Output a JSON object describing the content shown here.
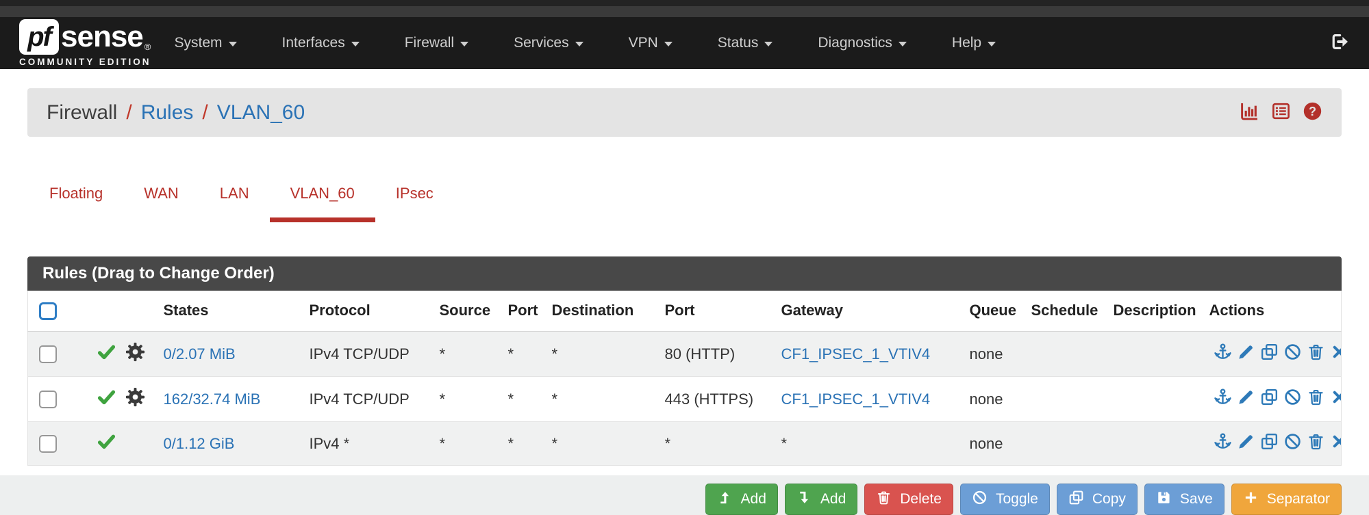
{
  "navbar": {
    "brand": {
      "pf": "pf",
      "sense": "sense",
      "reg": "®",
      "edition": "COMMUNITY EDITION"
    },
    "items": [
      "System",
      "Interfaces",
      "Firewall",
      "Services",
      "VPN",
      "Status",
      "Diagnostics",
      "Help"
    ],
    "logout_icon": "sign-out-icon"
  },
  "breadcrumb": {
    "separator": "/",
    "items": [
      {
        "label": "Firewall",
        "link": false
      },
      {
        "label": "Rules",
        "link": true
      },
      {
        "label": "VLAN_60",
        "link": true
      }
    ],
    "header_icons": [
      "chart-bar-icon",
      "log-list-icon",
      "help-icon"
    ]
  },
  "tabs": [
    {
      "label": "Floating",
      "active": false
    },
    {
      "label": "WAN",
      "active": false
    },
    {
      "label": "LAN",
      "active": false
    },
    {
      "label": "VLAN_60",
      "active": true
    },
    {
      "label": "IPsec",
      "active": false
    }
  ],
  "panel": {
    "title": "Rules (Drag to Change Order)"
  },
  "table": {
    "headers": [
      "States",
      "Protocol",
      "Source",
      "Port",
      "Destination",
      "Port",
      "Gateway",
      "Queue",
      "Schedule",
      "Description",
      "Actions"
    ],
    "rows": [
      {
        "enabled": true,
        "advanced": true,
        "states": "0/2.07 MiB",
        "protocol": "IPv4 TCP/UDP",
        "source": "*",
        "source_port": "*",
        "destination": "*",
        "dest_port": "80 (HTTP)",
        "gateway": "CF1_IPSEC_1_VTIV4",
        "gateway_is_link": true,
        "queue": "none",
        "schedule": "",
        "description": ""
      },
      {
        "enabled": true,
        "advanced": true,
        "states": "162/32.74 MiB",
        "protocol": "IPv4 TCP/UDP",
        "source": "*",
        "source_port": "*",
        "destination": "*",
        "dest_port": "443 (HTTPS)",
        "gateway": "CF1_IPSEC_1_VTIV4",
        "gateway_is_link": true,
        "queue": "none",
        "schedule": "",
        "description": ""
      },
      {
        "enabled": true,
        "advanced": false,
        "states": "0/1.12 GiB",
        "protocol": "IPv4 *",
        "source": "*",
        "source_port": "*",
        "destination": "*",
        "dest_port": "*",
        "gateway": "*",
        "gateway_is_link": false,
        "queue": "none",
        "schedule": "",
        "description": ""
      }
    ],
    "row_actions": [
      "anchor",
      "pencil",
      "copy",
      "ban",
      "trash",
      "times"
    ]
  },
  "footer_buttons": [
    {
      "label": "Add",
      "icon": "level-up",
      "style": "success"
    },
    {
      "label": "Add",
      "icon": "level-down",
      "style": "success"
    },
    {
      "label": "Delete",
      "icon": "trash",
      "style": "danger"
    },
    {
      "label": "Toggle",
      "icon": "ban",
      "style": "info"
    },
    {
      "label": "Copy",
      "icon": "copy",
      "style": "info"
    },
    {
      "label": "Save",
      "icon": "save",
      "style": "info"
    },
    {
      "label": "Separator",
      "icon": "plus",
      "style": "warning"
    }
  ],
  "colors": {
    "accent_red": "#b7312a",
    "link_blue": "#2a72b5",
    "enabled_green": "#3fa33f",
    "action_blue": "#2e7ab8",
    "btn_success": "#4fa44f",
    "btn_danger": "#d9534f",
    "btn_info": "#6c9ed6",
    "btn_warning": "#f0a63c",
    "navbar_bg": "#1b1b1b",
    "panel_header_bg": "#484848"
  }
}
